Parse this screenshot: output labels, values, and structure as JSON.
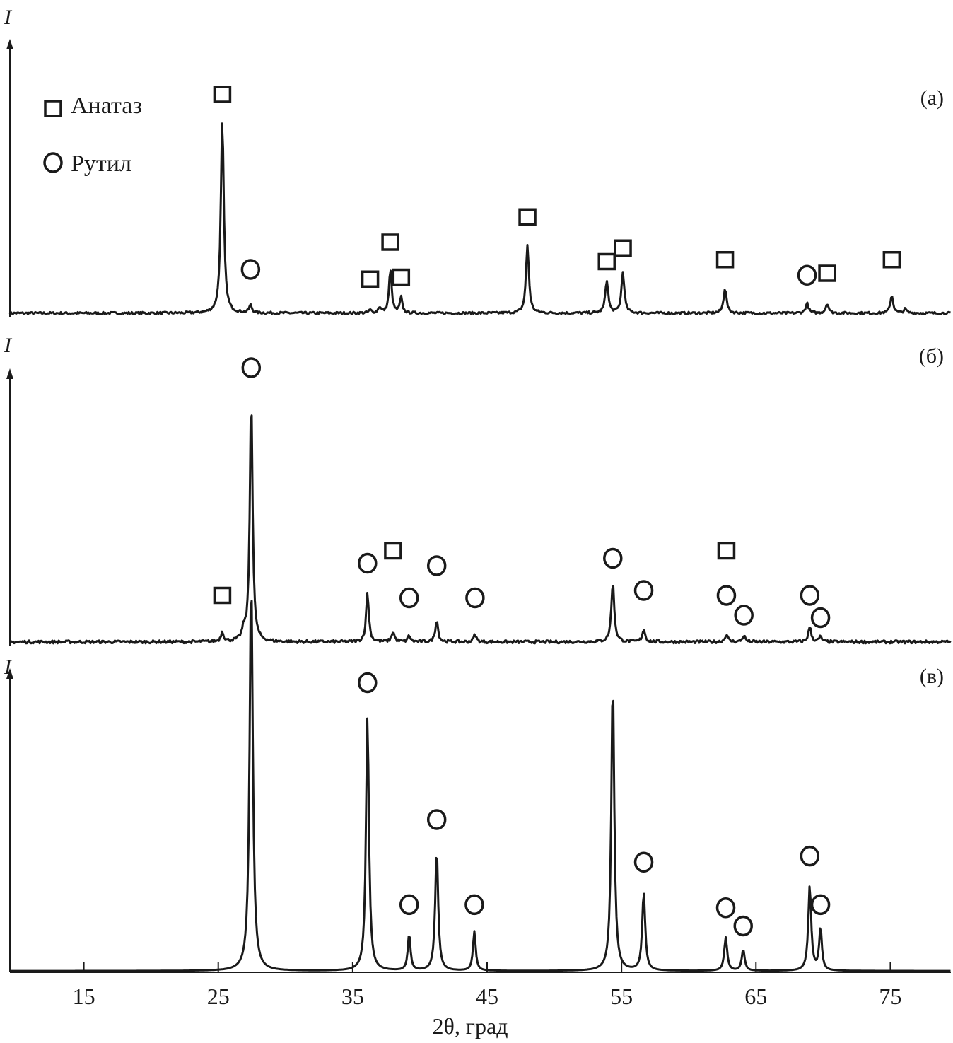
{
  "chart_data": {
    "type": "line",
    "xlabel": "2θ, град",
    "xlim": [
      9.5,
      79.5
    ],
    "xticks": [
      15,
      25,
      35,
      45,
      55,
      65,
      75
    ],
    "legend": {
      "placement": "top-left",
      "entries": [
        {
          "marker": "square",
          "label": "Анатаз"
        },
        {
          "marker": "circle",
          "label": "Рутил"
        }
      ]
    },
    "line_color": "#1a1a1a",
    "panels": [
      {
        "label": "(а)",
        "ylabel": "I",
        "ymax": 100,
        "baseline": 1.5,
        "peaks": [
          {
            "x": 25.3,
            "h": 100,
            "w": 0.13,
            "phase": "anatase",
            "mark_y": 114
          },
          {
            "x": 27.4,
            "h": 4,
            "w": 0.12,
            "phase": "rutile",
            "mark_y": 24
          },
          {
            "x": 36.3,
            "h": 1.5,
            "w": 0.12,
            "phase": "anatase",
            "mark_y": 19
          },
          {
            "x": 37.0,
            "h": 3,
            "w": 0.12
          },
          {
            "x": 37.8,
            "h": 22,
            "w": 0.12,
            "phase": "anatase",
            "mark_y": 38
          },
          {
            "x": 38.6,
            "h": 8,
            "w": 0.11,
            "phase": "anatase",
            "mark_y": 20
          },
          {
            "x": 48.0,
            "h": 35,
            "w": 0.13,
            "phase": "anatase",
            "mark_y": 51
          },
          {
            "x": 53.9,
            "h": 17,
            "w": 0.13,
            "phase": "anatase",
            "mark_y": 28
          },
          {
            "x": 55.1,
            "h": 21,
            "w": 0.13,
            "phase": "anatase",
            "mark_y": 35
          },
          {
            "x": 62.7,
            "h": 13,
            "w": 0.13,
            "phase": "anatase",
            "mark_y": 29
          },
          {
            "x": 68.8,
            "h": 5,
            "w": 0.13,
            "phase": "rutile",
            "mark_y": 21
          },
          {
            "x": 70.3,
            "h": 5,
            "w": 0.13,
            "phase": "anatase",
            "mark_y": 22
          },
          {
            "x": 75.1,
            "h": 9,
            "w": 0.13,
            "phase": "anatase",
            "mark_y": 29
          },
          {
            "x": 76.1,
            "h": 2,
            "w": 0.13
          }
        ]
      },
      {
        "label": "(б)",
        "ylabel": "I",
        "ymax": 100,
        "baseline": 1.2,
        "peaks": [
          {
            "x": 25.3,
            "h": 4,
            "w": 0.12,
            "phase": "anatase",
            "mark_y": 20
          },
          {
            "x": 26.9,
            "h": 4,
            "w": 0.15
          },
          {
            "x": 27.45,
            "h": 100,
            "w": 0.12,
            "phase": "rutile",
            "mark_y": 112
          },
          {
            "x": 36.1,
            "h": 20,
            "w": 0.12,
            "phase": "rutile",
            "mark_y": 33
          },
          {
            "x": 38.0,
            "h": 4,
            "w": 0.13,
            "phase": "anatase",
            "mark_y": 38
          },
          {
            "x": 39.2,
            "h": 2.5,
            "w": 0.12,
            "phase": "rutile",
            "mark_y": 19
          },
          {
            "x": 41.25,
            "h": 9,
            "w": 0.12,
            "phase": "rutile",
            "mark_y": 32
          },
          {
            "x": 44.1,
            "h": 3,
            "w": 0.12,
            "phase": "rutile",
            "mark_y": 19
          },
          {
            "x": 54.35,
            "h": 24,
            "w": 0.13,
            "phase": "rutile",
            "mark_y": 35
          },
          {
            "x": 56.65,
            "h": 5,
            "w": 0.13,
            "phase": "rutile",
            "mark_y": 22
          },
          {
            "x": 62.8,
            "h": 3,
            "w": 0.13,
            "phase": "both",
            "mark_y": 20,
            "mark_y2": 38
          },
          {
            "x": 64.1,
            "h": 2.5,
            "w": 0.13,
            "phase": "rutile",
            "mark_y": 12
          },
          {
            "x": 69.0,
            "h": 6,
            "w": 0.13,
            "phase": "rutile",
            "mark_y": 20
          },
          {
            "x": 69.8,
            "h": 2,
            "w": 0.13,
            "phase": "rutile",
            "mark_y": 11
          }
        ]
      },
      {
        "label": "(в)",
        "ylabel": "I",
        "ymax": 100,
        "baseline": 0.2,
        "peaks": [
          {
            "x": 27.45,
            "h": 130,
            "w": 0.14
          },
          {
            "x": 36.1,
            "h": 84,
            "w": 0.13,
            "phase": "rutile",
            "mark_y": 95
          },
          {
            "x": 39.2,
            "h": 12,
            "w": 0.12,
            "phase": "rutile",
            "mark_y": 22
          },
          {
            "x": 41.25,
            "h": 40,
            "w": 0.13,
            "phase": "rutile",
            "mark_y": 50
          },
          {
            "x": 44.05,
            "h": 13,
            "w": 0.12,
            "phase": "rutile",
            "mark_y": 22
          },
          {
            "x": 54.35,
            "h": 96,
            "w": 0.13
          },
          {
            "x": 56.65,
            "h": 26,
            "w": 0.13,
            "phase": "rutile",
            "mark_y": 36
          },
          {
            "x": 62.75,
            "h": 11,
            "w": 0.13,
            "phase": "rutile",
            "mark_y": 21
          },
          {
            "x": 64.05,
            "h": 7,
            "w": 0.13,
            "phase": "rutile",
            "mark_y": 15
          },
          {
            "x": 69.0,
            "h": 28,
            "w": 0.13,
            "phase": "rutile",
            "mark_y": 38
          },
          {
            "x": 69.8,
            "h": 14,
            "w": 0.12,
            "phase": "rutile",
            "mark_y": 22
          }
        ]
      }
    ]
  }
}
